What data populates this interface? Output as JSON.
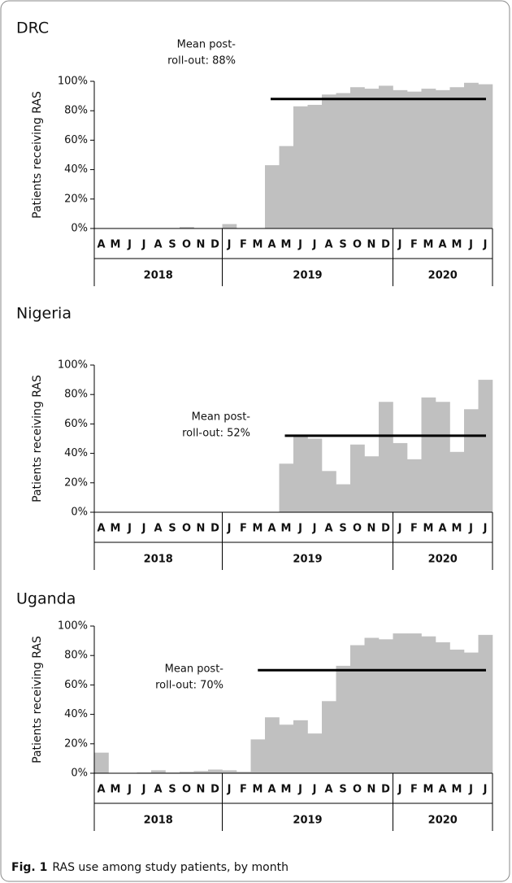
{
  "chart_data": [
    {
      "type": "bar",
      "title": "DRC",
      "ylabel": "Patients receiving RAS",
      "color": "#c0c0c0",
      "categories": [
        "A",
        "M",
        "J",
        "J",
        "A",
        "S",
        "O",
        "N",
        "D",
        "J",
        "F",
        "M",
        "A",
        "M",
        "J",
        "J",
        "A",
        "S",
        "O",
        "N",
        "D",
        "J",
        "F",
        "M",
        "A",
        "M",
        "J",
        "J"
      ],
      "groups": [
        "2018",
        "2019",
        "2020"
      ],
      "values": [
        0,
        0,
        0,
        0,
        0,
        0,
        1,
        0,
        0,
        3,
        0,
        0,
        43,
        56,
        83,
        84,
        91,
        92,
        96,
        95,
        97,
        94,
        93,
        95,
        94,
        96,
        99,
        98
      ],
      "mean": 88,
      "annotation": [
        "Mean post-",
        "roll-out: 88%"
      ],
      "ylim": [
        0,
        100
      ],
      "yticks": [
        {
          "value": 0,
          "label": "0%"
        },
        {
          "value": 20,
          "label": "20%"
        },
        {
          "value": 40,
          "label": "40%"
        },
        {
          "value": 60,
          "label": "60%"
        },
        {
          "value": 80,
          "label": "80%"
        },
        {
          "value": 100,
          "label": "100%"
        }
      ]
    },
    {
      "type": "bar",
      "title": "Nigeria",
      "ylabel": "Patients receiving RAS",
      "color": "#c0c0c0",
      "categories": [
        "A",
        "M",
        "J",
        "J",
        "A",
        "S",
        "O",
        "N",
        "D",
        "J",
        "F",
        "M",
        "A",
        "M",
        "J",
        "J",
        "A",
        "S",
        "O",
        "N",
        "D",
        "J",
        "F",
        "M",
        "A",
        "M",
        "J",
        "J"
      ],
      "groups": [
        "2018",
        "2019",
        "2020"
      ],
      "values": [
        0,
        0,
        0,
        0,
        0,
        0,
        0,
        0,
        0,
        0,
        0,
        0,
        0,
        33,
        52,
        50,
        28,
        19,
        46,
        38,
        75,
        47,
        36,
        78,
        75,
        41,
        70,
        90
      ],
      "mean": 52,
      "annotation": [
        "Mean post-",
        "roll-out: 52%"
      ],
      "ylim": [
        0,
        100
      ],
      "yticks": [
        {
          "value": 0,
          "label": "0%"
        },
        {
          "value": 20,
          "label": "20%"
        },
        {
          "value": 40,
          "label": "40%"
        },
        {
          "value": 60,
          "label": "60%"
        },
        {
          "value": 80,
          "label": "80%"
        },
        {
          "value": 100,
          "label": "100%"
        }
      ]
    },
    {
      "type": "bar",
      "title": "Uganda",
      "ylabel": "Patients receiving RAS",
      "color": "#c0c0c0",
      "categories": [
        "A",
        "M",
        "J",
        "J",
        "A",
        "S",
        "O",
        "N",
        "D",
        "J",
        "F",
        "M",
        "A",
        "M",
        "J",
        "J",
        "A",
        "S",
        "O",
        "N",
        "D",
        "J",
        "F",
        "M",
        "A",
        "M",
        "J",
        "J"
      ],
      "groups": [
        "2018",
        "2019",
        "2020"
      ],
      "values": [
        14,
        0,
        0,
        0.5,
        2,
        0.5,
        1,
        1.5,
        2.5,
        2,
        1,
        23,
        38,
        33,
        36,
        27,
        49,
        73,
        87,
        92,
        91,
        95,
        95,
        93,
        89,
        84,
        82,
        94
      ],
      "mean": 70,
      "annotation": [
        "Mean post-",
        "roll-out: 70%"
      ],
      "ylim": [
        0,
        100
      ],
      "yticks": [
        {
          "value": 0,
          "label": "0%"
        },
        {
          "value": 20,
          "label": "20%"
        },
        {
          "value": 40,
          "label": "40%"
        },
        {
          "value": 60,
          "label": "60%"
        },
        {
          "value": 80,
          "label": "80%"
        },
        {
          "value": 100,
          "label": "100%"
        }
      ]
    }
  ],
  "caption": {
    "label": "Fig. 1",
    "text": "RAS use among study patients, by month"
  }
}
